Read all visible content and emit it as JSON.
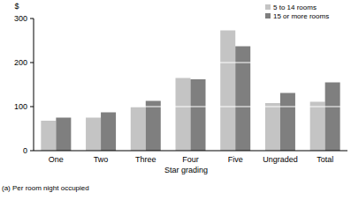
{
  "chart_data": {
    "type": "bar",
    "y_label": "$",
    "x_label": "Star grading",
    "annotations": [
      "(a) Per room night occupied"
    ],
    "categories": [
      "One",
      "Two",
      "Three",
      "Four",
      "Five",
      "Ungraded",
      "Total"
    ],
    "series": [
      {
        "name": "5 to 14 rooms",
        "color": "#c4c4c4",
        "values": [
          68,
          75,
          99,
          165,
          273,
          108,
          111
        ]
      },
      {
        "name": "15 or more rooms",
        "color": "#7f7f7f",
        "values": [
          75,
          87,
          113,
          162,
          237,
          131,
          155
        ]
      }
    ],
    "ylim": [
      0,
      300
    ],
    "yticks": [
      0,
      100,
      200,
      300
    ],
    "grid": true,
    "legend": "top-right"
  }
}
